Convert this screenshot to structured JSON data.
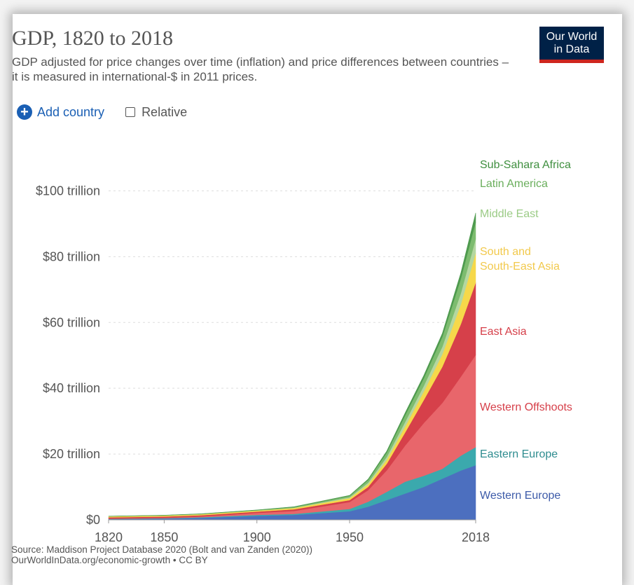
{
  "header": {
    "title": "GDP, 1820 to 2018",
    "subtitle": "GDP adjusted for price changes over time (inflation) and price differences between countries – it is measured in international-$ in 2011 prices.",
    "logo_line1": "Our World",
    "logo_line2": "in Data"
  },
  "controls": {
    "add_country_label": "Add country",
    "relative_label": "Relative"
  },
  "footer": {
    "source_line1": "Source: Maddison Project Database 2020 (Bolt and van Zanden (2020))",
    "source_line2": "OurWorldInData.org/economic-growth • CC BY"
  },
  "chart_data": {
    "type": "area",
    "stacked": true,
    "x": [
      1820,
      1850,
      1870,
      1900,
      1920,
      1950,
      1960,
      1970,
      1980,
      1990,
      2000,
      2010,
      2018
    ],
    "xticks": [
      1820,
      1850,
      1900,
      1950,
      2018
    ],
    "xtick_labels": [
      "1820",
      "1850",
      "1900",
      "1950",
      "2018"
    ],
    "yticks": [
      0,
      20,
      40,
      60,
      80,
      100
    ],
    "ytick_labels": [
      "$0",
      "$20 trillion",
      "$40 trillion",
      "$60 trillion",
      "$80 trillion",
      "$100 trillion"
    ],
    "ylim": [
      0,
      115
    ],
    "grid": true,
    "series": [
      {
        "name": "Western Europe",
        "color": "#4C6FBF",
        "values": [
          0.2,
          0.4,
          0.6,
          1.2,
          1.5,
          2.6,
          4.0,
          6.0,
          8.0,
          10.0,
          12.5,
          15.0,
          16.6
        ]
      },
      {
        "name": "Eastern Europe",
        "color": "#3BA9AD",
        "values": [
          0.1,
          0.1,
          0.2,
          0.3,
          0.3,
          0.7,
          1.5,
          2.5,
          3.6,
          3.4,
          3.0,
          4.5,
          5.5
        ]
      },
      {
        "name": "Western Offshoots",
        "color": "#E8666B",
        "values": [
          0.05,
          0.1,
          0.2,
          0.6,
          0.9,
          2.1,
          3.5,
          6.5,
          11.0,
          16.0,
          20.0,
          24.0,
          28.0
        ]
      },
      {
        "name": "East Asia",
        "color": "#D6404A",
        "values": [
          0.4,
          0.4,
          0.4,
          0.4,
          0.5,
          0.6,
          1.0,
          2.0,
          4.0,
          7.0,
          11.0,
          16.0,
          22.0
        ]
      },
      {
        "name": "South and South-East Asia",
        "color": "#F6D84A",
        "values": [
          0.3,
          0.3,
          0.3,
          0.3,
          0.4,
          0.6,
          0.8,
          1.2,
          1.8,
          2.6,
          3.8,
          6.0,
          9.0
        ]
      },
      {
        "name": "Middle East",
        "color": "#B4D7A0",
        "values": [
          0.02,
          0.03,
          0.04,
          0.05,
          0.07,
          0.25,
          0.5,
          0.9,
          1.4,
          1.7,
          2.3,
          3.4,
          4.3
        ]
      },
      {
        "name": "Latin America",
        "color": "#7DBC6F",
        "values": [
          0.02,
          0.04,
          0.06,
          0.1,
          0.2,
          0.45,
          0.8,
          1.3,
          2.0,
          2.3,
          3.0,
          4.4,
          5.1
        ]
      },
      {
        "name": "Sub-Sahara Africa",
        "color": "#4E9A4E",
        "values": [
          0.04,
          0.05,
          0.06,
          0.07,
          0.12,
          0.15,
          0.3,
          0.5,
          0.8,
          0.9,
          1.1,
          1.8,
          2.8
        ]
      }
    ],
    "series_label_colors": [
      "#3D5BA9",
      "#2E8C8F",
      "#D6404A",
      "#D6404A",
      "#F2C94C",
      "#9BCB86",
      "#6AAE5C",
      "#3F8F3F"
    ],
    "series_label_lines": [
      [
        "Western Europe"
      ],
      [
        "Eastern Europe"
      ],
      [
        "Western Offshoots"
      ],
      [
        "East Asia"
      ],
      [
        "South and",
        "South-East Asia"
      ],
      [
        "Middle East"
      ],
      [
        "Latin America"
      ],
      [
        "Sub-Sahara Africa"
      ]
    ]
  }
}
